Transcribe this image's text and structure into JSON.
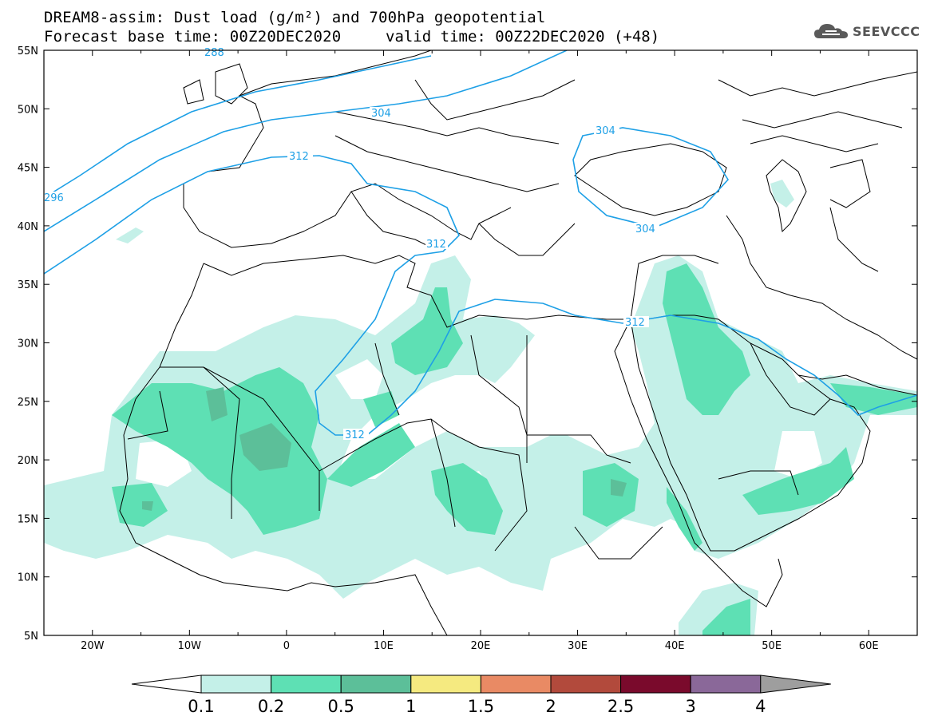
{
  "header": {
    "line1": "DREAM8-assim: Dust load (g/m²) and 700hPa geopotential",
    "line2": "Forecast base time: 00Z20DEC2020",
    "valid": "valid time: 00Z22DEC2020 (+48)",
    "logo": "SEEVCCC"
  },
  "map": {
    "lon_labels": [
      "20W",
      "10W",
      "0",
      "10E",
      "20E",
      "30E",
      "40E",
      "50E",
      "60E"
    ],
    "lat_labels": [
      "55N",
      "50N",
      "45N",
      "40N",
      "35N",
      "30N",
      "25N",
      "20N",
      "15N",
      "10N",
      "5N"
    ],
    "contour_labels": [
      "288",
      "296",
      "304",
      "304",
      "304",
      "312",
      "312",
      "312",
      "312"
    ],
    "colors": {
      "contour": "#1ea0e6",
      "coast": "#000000"
    }
  },
  "colorbar": {
    "levels": [
      "0.1",
      "0.2",
      "0.5",
      "1",
      "1.5",
      "2",
      "2.5",
      "3",
      "4"
    ],
    "colors": [
      "#c4f0e8",
      "#5ee0b4",
      "#5cbf99",
      "#f5ea80",
      "#e98a64",
      "#b24a3c",
      "#7a0a2c",
      "#8a6899",
      "#9e9e9e"
    ]
  }
}
